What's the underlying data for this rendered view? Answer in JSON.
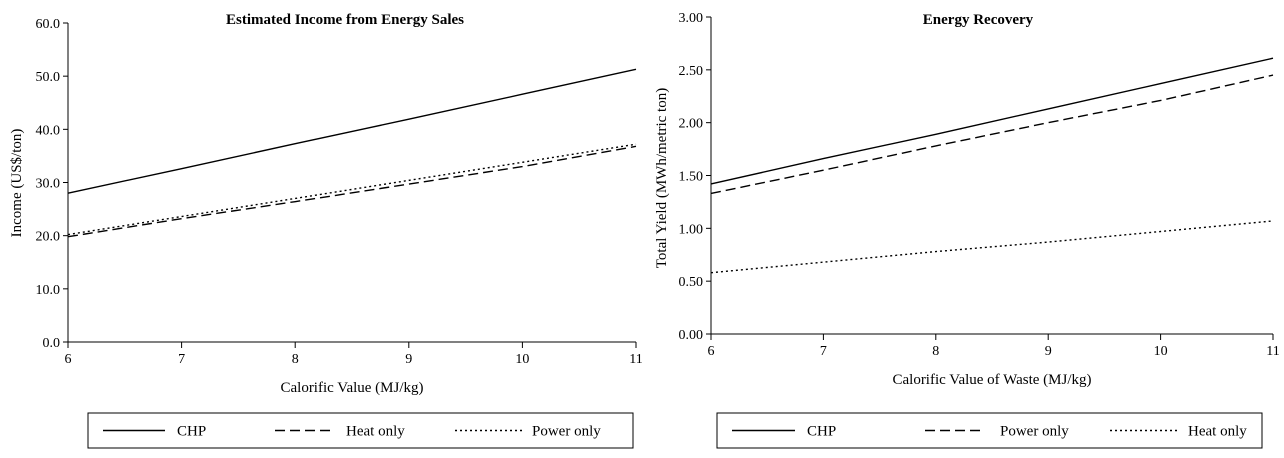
{
  "chart_data": [
    {
      "type": "line",
      "title": "Estimated Income from Energy Sales",
      "xlabel": "Calorific Value (MJ/kg)",
      "ylabel": "Income (US$/ton)",
      "xlim": [
        6,
        11
      ],
      "ylim": [
        0,
        60
      ],
      "xticks": [
        "6",
        "7",
        "8",
        "9",
        "10",
        "11"
      ],
      "yticks": [
        "0.0",
        "10.0",
        "20.0",
        "30.0",
        "40.0",
        "50.0",
        "60.0"
      ],
      "grid": false,
      "legend_position": "bottom",
      "x": [
        6,
        7,
        8,
        9,
        10,
        11
      ],
      "series": [
        {
          "name": "CHP",
          "style": "solid",
          "values": [
            28.0,
            32.6,
            37.3,
            41.9,
            46.6,
            51.3
          ]
        },
        {
          "name": "Heat only",
          "style": "dashed",
          "values": [
            19.8,
            23.2,
            26.4,
            29.7,
            33.0,
            36.8
          ]
        },
        {
          "name": "Power only",
          "style": "dotted",
          "values": [
            20.2,
            23.6,
            27.0,
            30.4,
            33.8,
            37.2
          ]
        }
      ]
    },
    {
      "type": "line",
      "title": "Energy Recovery",
      "xlabel": "Calorific Value of Waste (MJ/kg)",
      "ylabel": "Total Yield (MWh/metric ton)",
      "xlim": [
        6,
        11
      ],
      "ylim": [
        0,
        3
      ],
      "xticks": [
        "6",
        "7",
        "8",
        "9",
        "10",
        "11"
      ],
      "yticks": [
        "0.00",
        "0.50",
        "1.00",
        "1.50",
        "2.00",
        "2.50",
        "3.00"
      ],
      "grid": false,
      "legend_position": "bottom",
      "x": [
        6,
        7,
        8,
        9,
        10,
        11
      ],
      "series": [
        {
          "name": "CHP",
          "style": "solid",
          "values": [
            1.42,
            1.66,
            1.89,
            2.13,
            2.37,
            2.61
          ]
        },
        {
          "name": "Power only",
          "style": "dashed",
          "values": [
            1.33,
            1.55,
            1.78,
            2.0,
            2.21,
            2.45
          ]
        },
        {
          "name": "Heat only",
          "style": "dotted",
          "values": [
            0.58,
            0.68,
            0.78,
            0.87,
            0.97,
            1.07
          ]
        }
      ]
    }
  ]
}
